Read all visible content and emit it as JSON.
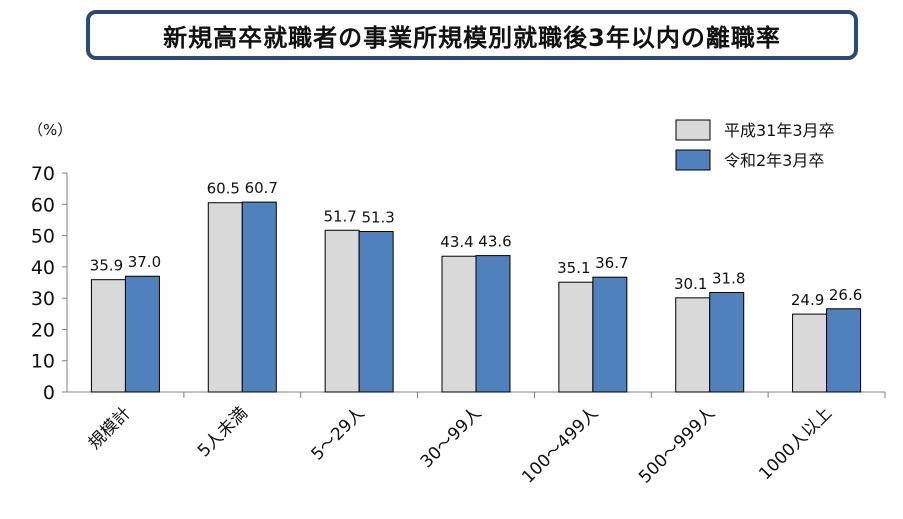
{
  "chart_data": {
    "type": "bar",
    "title": "新規高卒就職者の事業所規模別就職後3年以内の離職率",
    "ylabel": "（%）",
    "xlabel": "",
    "ylim": [
      0,
      70
    ],
    "yticks": [
      0,
      10,
      20,
      30,
      40,
      50,
      60,
      70
    ],
    "categories": [
      "規模計",
      "5人未満",
      "5～29人",
      "30～99人",
      "100～499人",
      "500～999人",
      "1000人以上"
    ],
    "series": [
      {
        "name": "平成31年3月卒",
        "color": "#d9d9d9",
        "values": [
          35.9,
          60.5,
          51.7,
          43.4,
          35.1,
          30.1,
          24.9
        ]
      },
      {
        "name": "令和2年3月卒",
        "color": "#4f81bd",
        "values": [
          37.0,
          60.7,
          51.3,
          43.6,
          36.7,
          31.8,
          26.6
        ]
      }
    ],
    "legend_position": "top-right",
    "grid": false
  }
}
